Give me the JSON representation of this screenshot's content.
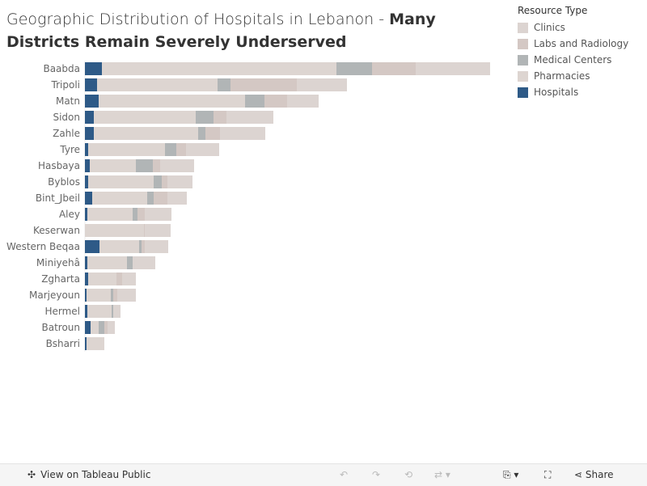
{
  "title": {
    "regular": "Geographic Distribution of Hospitals in Lebanon - ",
    "bold": "Many Districts Remain Severely Underserved"
  },
  "legend": {
    "title": "Resource Type",
    "items": [
      {
        "label": "Clinics",
        "color": "#dcd4d1"
      },
      {
        "label": "Labs and Radiology",
        "color": "#d4c8c4"
      },
      {
        "label": "Medical Centers",
        "color": "#b1b5b6"
      },
      {
        "label": "Pharmacies",
        "color": "#ddd5d1"
      },
      {
        "label": "Hospitals",
        "color": "#2e5a87"
      }
    ]
  },
  "toolbar": {
    "view_label": "View on Tableau Public",
    "share_label": "Share"
  },
  "chart_data": {
    "type": "bar",
    "orientation": "horizontal",
    "stacked": true,
    "grid": false,
    "legend_position": "right",
    "stack_order": [
      "Hospitals",
      "Pharmacies",
      "Medical Centers",
      "Labs and Radiology",
      "Clinics"
    ],
    "categories": [
      "Baabda",
      "Tripoli",
      "Matn",
      "Sidon",
      "Zahle",
      "Tyre",
      "Hasbaya",
      "Byblos",
      "Bint_Jbeil",
      "Aley",
      "Keserwan",
      "Western Beqaa",
      "Miniyehâ",
      "Zgharta",
      "Marjeyoun",
      "Hermel",
      "Batroun",
      "Bsharri"
    ],
    "series": [
      {
        "name": "Hospitals",
        "values": [
          21,
          15,
          17,
          11,
          11,
          4,
          6,
          4,
          9,
          3,
          0,
          18,
          3,
          4,
          2,
          3,
          7,
          2
        ]
      },
      {
        "name": "Pharmacies",
        "values": [
          290,
          149,
          181,
          126,
          129,
          95,
          57,
          81,
          68,
          56,
          73,
          49,
          49,
          35,
          30,
          30,
          10,
          22
        ]
      },
      {
        "name": "Medical Centers",
        "values": [
          44,
          16,
          24,
          22,
          9,
          14,
          21,
          10,
          8,
          6,
          0,
          3,
          7,
          0,
          3,
          2,
          7,
          0
        ]
      },
      {
        "name": "Labs and Radiology",
        "values": [
          54,
          82,
          28,
          16,
          18,
          12,
          9,
          7,
          17,
          9,
          1,
          4,
          0,
          7,
          5,
          0,
          4,
          0
        ]
      },
      {
        "name": "Clinics",
        "values": [
          92,
          62,
          39,
          58,
          56,
          41,
          42,
          31,
          24,
          33,
          32,
          29,
          28,
          17,
          23,
          9,
          9,
          0
        ]
      }
    ]
  }
}
